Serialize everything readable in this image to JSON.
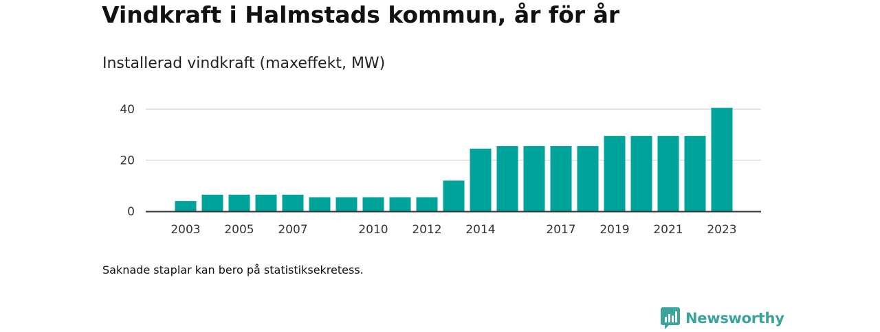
{
  "title": "Vindkraft i Halmstads kommun, år för år",
  "subtitle": "Installerad vindkraft (maxeffekt, MW)",
  "footnote": "Saknade staplar kan bero på statistiksekretess.",
  "brand": {
    "name": "Newsworthy",
    "icon": "newsworthy-logo-icon",
    "color": "#3aa39a"
  },
  "colors": {
    "bar": "#00a39a",
    "grid": "#dddddd",
    "axis": "#333333"
  },
  "chart_data": {
    "type": "bar",
    "title": "Installerad vindkraft (maxeffekt, MW)",
    "xlabel": "",
    "ylabel": "",
    "categories": [
      "2003",
      "2004",
      "2005",
      "2006",
      "2007",
      "2008",
      "2009",
      "2010",
      "2011",
      "2012",
      "2013",
      "2014",
      "2015",
      "2016",
      "2017",
      "2018",
      "2019",
      "2020",
      "2021",
      "2022",
      "2023"
    ],
    "values": [
      4,
      6.5,
      6.5,
      6.5,
      6.5,
      5.5,
      5.5,
      5.5,
      5.5,
      5.5,
      12,
      24.5,
      25.5,
      25.5,
      25.5,
      25.5,
      29.5,
      29.5,
      29.5,
      29.5,
      40.5
    ],
    "xtick_labels": [
      "2003",
      "2005",
      "2007",
      "2010",
      "2012",
      "2014",
      "2017",
      "2019",
      "2021",
      "2023"
    ],
    "yticks": [
      0,
      20,
      40
    ],
    "ylim": [
      0,
      40.5
    ],
    "grid": true,
    "legend": "none"
  }
}
